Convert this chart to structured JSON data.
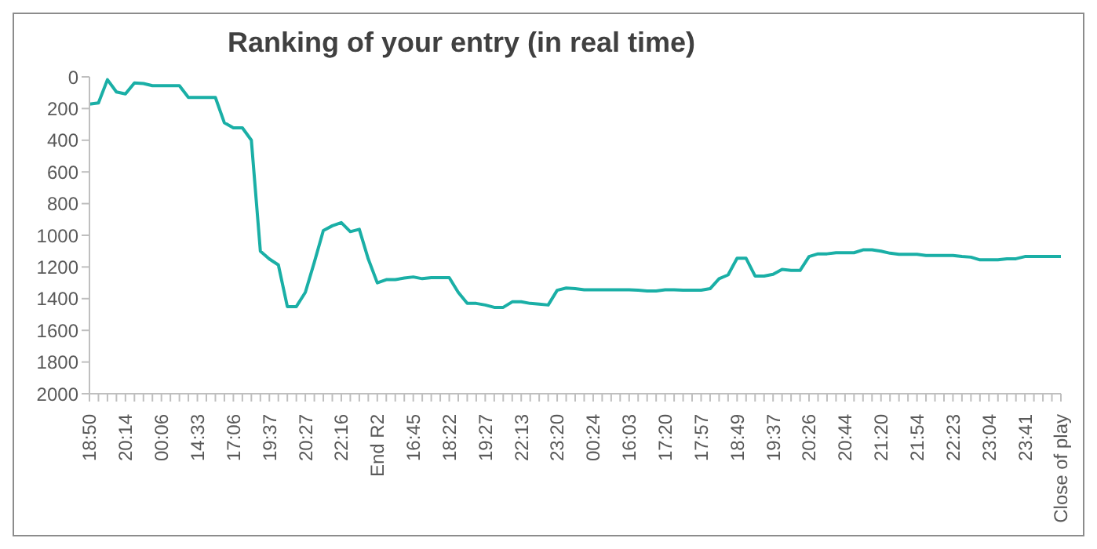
{
  "chart_data": {
    "type": "line",
    "title": "Ranking of your entry (in real time)",
    "categories": [
      "18:50",
      null,
      null,
      null,
      "20:14",
      null,
      null,
      null,
      "00:06",
      null,
      null,
      null,
      "14:33",
      null,
      null,
      null,
      "17:06",
      null,
      null,
      null,
      "19:37",
      null,
      null,
      null,
      "20:27",
      null,
      null,
      null,
      "22:16",
      null,
      null,
      null,
      "End R2",
      null,
      null,
      null,
      "16:45",
      null,
      null,
      null,
      "18:22",
      null,
      null,
      null,
      "19:27",
      null,
      null,
      null,
      "22:13",
      null,
      null,
      null,
      "23:20",
      null,
      null,
      null,
      "00:24",
      null,
      null,
      null,
      "16:03",
      null,
      null,
      null,
      "17:20",
      null,
      null,
      null,
      "17:57",
      null,
      null,
      null,
      "18:49",
      null,
      null,
      null,
      "19:37",
      null,
      null,
      null,
      "20:26",
      null,
      null,
      null,
      "20:44",
      null,
      null,
      null,
      "21:20",
      null,
      null,
      null,
      "21:54",
      null,
      null,
      null,
      "22:23",
      null,
      null,
      null,
      "23:04",
      null,
      null,
      null,
      "23:41",
      null,
      null,
      null,
      "Close of play"
    ],
    "series": [
      {
        "color": "#1aafa6",
        "values": [
          172,
          165,
          18,
          95,
          108,
          38,
          42,
          56,
          56,
          56,
          56,
          130,
          130,
          130,
          130,
          290,
          322,
          322,
          400,
          1100,
          1150,
          1187,
          1450,
          1450,
          1360,
          1170,
          970,
          940,
          920,
          977,
          962,
          1150,
          1300,
          1280,
          1280,
          1270,
          1263,
          1274,
          1267,
          1267,
          1267,
          1360,
          1430,
          1430,
          1440,
          1455,
          1455,
          1420,
          1420,
          1430,
          1434,
          1440,
          1347,
          1333,
          1337,
          1344,
          1344,
          1344,
          1344,
          1344,
          1344,
          1347,
          1351,
          1351,
          1344,
          1344,
          1347,
          1347,
          1347,
          1337,
          1274,
          1250,
          1145,
          1145,
          1257,
          1257,
          1246,
          1215,
          1222,
          1222,
          1134,
          1117,
          1117,
          1110,
          1110,
          1110,
          1092,
          1092,
          1100,
          1113,
          1120,
          1120,
          1120,
          1127,
          1127,
          1127,
          1127,
          1134,
          1138,
          1155,
          1155,
          1155,
          1148,
          1148,
          1134,
          1134,
          1134,
          1134,
          1134
        ]
      }
    ],
    "ylim": [
      2000,
      0
    ],
    "yticks": [
      0,
      200,
      400,
      600,
      800,
      1000,
      1200,
      1400,
      1600,
      1800,
      2000
    ],
    "grid": false,
    "legend": false,
    "marker": "none",
    "line_style": "solid"
  }
}
